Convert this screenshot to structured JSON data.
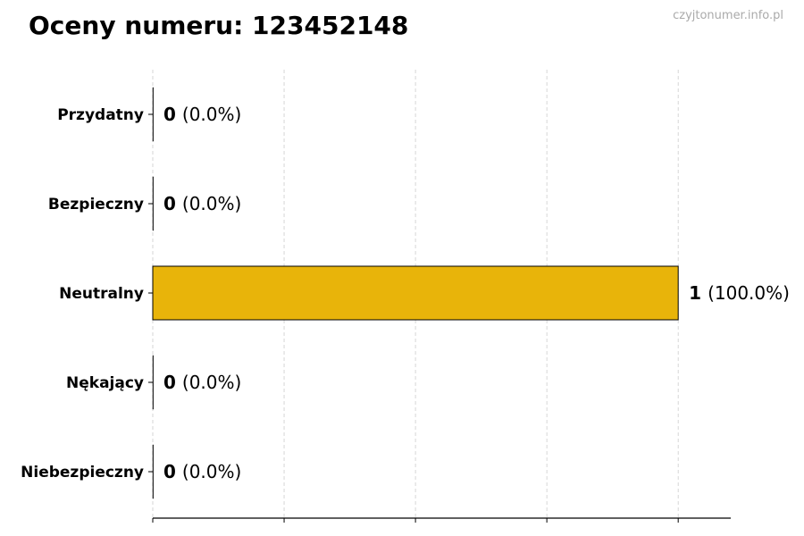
{
  "title": "Oceny numeru: 123452148",
  "watermark": "czyjtonumer.info.pl",
  "chart_data": {
    "type": "bar",
    "orientation": "horizontal",
    "categories": [
      "Przydatny",
      "Bezpieczny",
      "Neutralny",
      "Nękający",
      "Niebezpieczny"
    ],
    "values": [
      0,
      0,
      1,
      0,
      0
    ],
    "labels": [
      "(0.0%)",
      "(0.0%)",
      "(100.0%)",
      "(0.0%)",
      "(0.0%)"
    ],
    "bar_color": "#E8B40A",
    "xlim": [
      0,
      1.1
    ],
    "xticks": [
      0,
      0.25,
      0.5,
      0.75,
      1.0
    ],
    "grid": "x-dashed",
    "xlabel": "",
    "ylabel": ""
  }
}
